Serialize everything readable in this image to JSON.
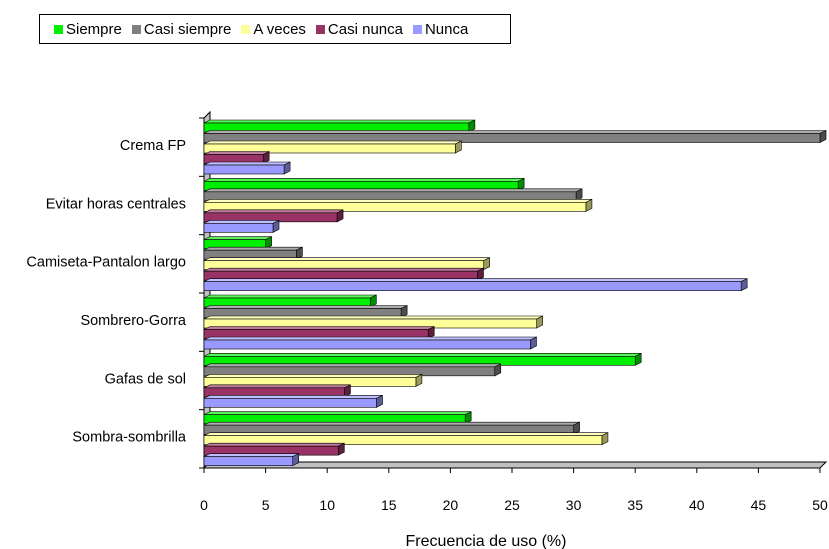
{
  "chart_data": {
    "type": "bar",
    "orientation": "horizontal",
    "style": "3d",
    "xlabel": "Frecuencia de uso (%)",
    "ylabel": "",
    "xlim": [
      0,
      50
    ],
    "xticks": [
      "0",
      "5",
      "10",
      "15",
      "20",
      "25",
      "30",
      "35",
      "40",
      "45",
      "50"
    ],
    "categories": [
      "Crema FP",
      "Evitar horas centrales",
      "Camiseta-Pantalon largo",
      "Sombrero-Gorra",
      "Gafas de sol",
      "Sombra-sombrilla"
    ],
    "series": [
      {
        "name": "Siempre",
        "color": "#00ee00",
        "values": [
          21.5,
          25.5,
          5,
          13.5,
          35,
          21.2
        ]
      },
      {
        "name": "Casi siempre",
        "color": "#808080",
        "values": [
          50,
          30.2,
          7.5,
          16,
          23.6,
          30
        ]
      },
      {
        "name": "A veces",
        "color": "#ffff99",
        "values": [
          20.4,
          31,
          22.7,
          27,
          17.2,
          32.3
        ]
      },
      {
        "name": "Casi nunca",
        "color": "#993366",
        "values": [
          4.8,
          10.8,
          22.2,
          18.2,
          11.4,
          10.9
        ]
      },
      {
        "name": "Nunca",
        "color": "#9999ff",
        "values": [
          6.5,
          5.6,
          43.6,
          26.5,
          14,
          7.2
        ]
      }
    ],
    "legend": "top-left",
    "grid": false
  }
}
